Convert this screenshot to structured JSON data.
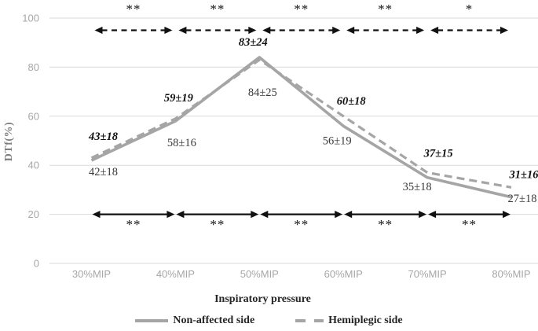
{
  "chart_data": {
    "type": "line",
    "title": "",
    "x_axis": {
      "label": "Inspiratory pressure",
      "categories": [
        "30%MIP",
        "40%MIP",
        "50%MIP",
        "60%MIP",
        "70%MIP",
        "80%MIP"
      ]
    },
    "y_axis": {
      "label": "DTf(%)",
      "ticks": [
        0,
        20,
        40,
        60,
        80,
        100
      ],
      "range": [
        0,
        100
      ],
      "grid": true
    },
    "series": [
      {
        "name": "Non-affected side",
        "line_style": "solid",
        "label_style": "plain",
        "values": [
          42,
          58,
          84,
          56,
          35,
          27
        ],
        "point_labels": [
          {
            "text": "42±18",
            "dx": 15,
            "dy": 19
          },
          {
            "text": "58±16",
            "dx": 8,
            "dy": 32
          },
          {
            "text": "84±25",
            "dx": 4,
            "dy": 49
          },
          {
            "text": "56±19",
            "dx": -8,
            "dy": 23
          },
          {
            "text": "35±18",
            "dx": -13,
            "dy": 16
          },
          {
            "text": "27±18",
            "dx": 14,
            "dy": 6
          }
        ]
      },
      {
        "name": "Hemiplegic side",
        "line_style": "dashed",
        "label_style": "bold-italic",
        "values": [
          43,
          59,
          83,
          60,
          37,
          31
        ],
        "point_labels": [
          {
            "text": "43±18",
            "dx": 15,
            "dy": -23
          },
          {
            "text": "59±19",
            "dx": 4,
            "dy": -22
          },
          {
            "text": "83±24",
            "dx": -8,
            "dy": -18
          },
          {
            "text": "60±18",
            "dx": 10,
            "dy": -15
          },
          {
            "text": "37±15",
            "dx": 14,
            "dy": -20
          },
          {
            "text": "31±16",
            "dx": 16,
            "dy": -12
          }
        ]
      }
    ],
    "significance": {
      "top": {
        "arrow_style": "dashed",
        "stars": [
          "**",
          "**",
          "**",
          "**",
          "*"
        ]
      },
      "bottom": {
        "arrow_style": "solid",
        "stars": [
          "**",
          "**",
          "**",
          "**",
          "**"
        ]
      }
    },
    "colors": {
      "line_gray": "#a5a5a5",
      "grid": "#d9d9d9",
      "tick_label": "#a6a6a6",
      "plain_label": "#3a3a3a",
      "bold_label": "#111111",
      "significance": "#111111"
    },
    "legend_position": "bottom"
  },
  "legend": {
    "items": [
      {
        "label": "Non-affected side",
        "style": "solid"
      },
      {
        "label": "Hemiplegic side",
        "style": "dashed"
      }
    ]
  }
}
